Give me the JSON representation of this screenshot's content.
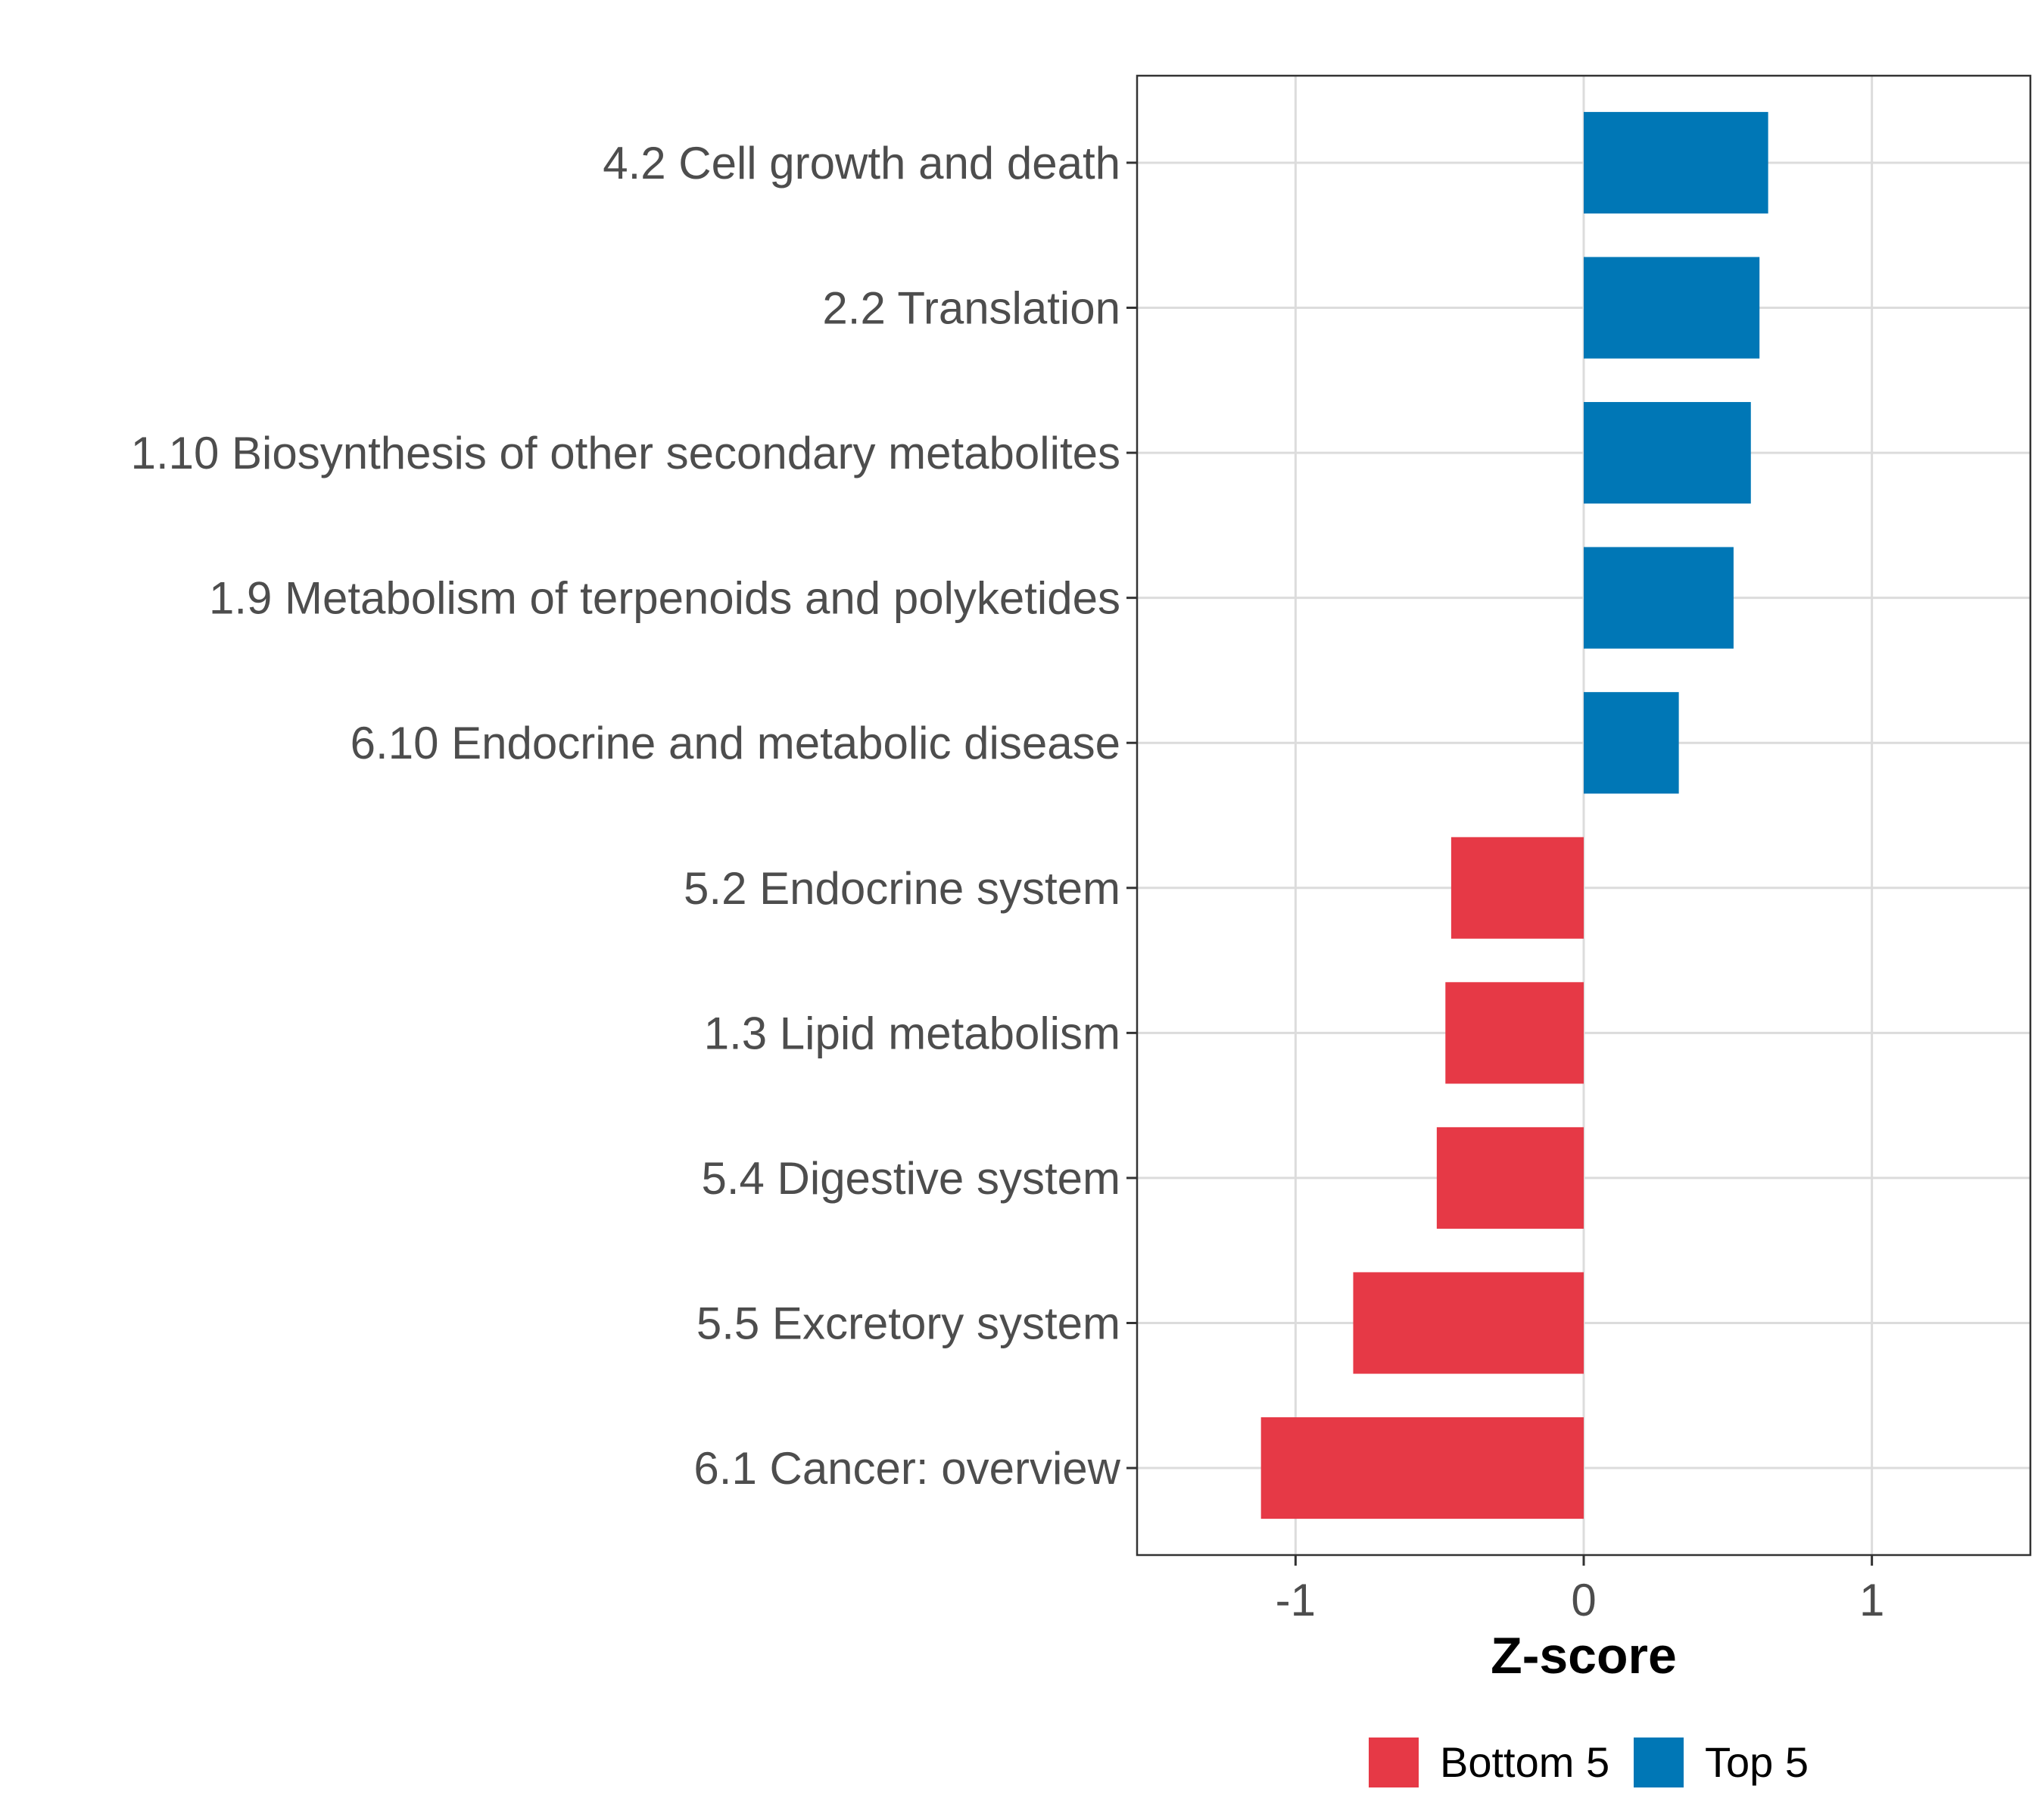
{
  "chart_data": {
    "type": "bar",
    "orientation": "horizontal",
    "title": "",
    "xlabel": "Z-score",
    "ylabel": "",
    "xlim": [
      -1.55,
      1.55
    ],
    "xticks": [
      -1,
      0,
      1
    ],
    "xtick_labels": [
      "-1",
      "0",
      "1"
    ],
    "grid": true,
    "legend_position": "bottom",
    "categories": [
      "4.2 Cell growth and death",
      "2.2 Translation",
      "1.10 Biosynthesis of other secondary metabolites",
      "1.9 Metabolism of terpenoids and polyketides",
      "6.10 Endocrine and metabolic disease",
      "5.2 Endocrine system",
      "1.3 Lipid metabolism",
      "5.4 Digestive system",
      "5.5 Excretory system",
      "6.1 Cancer: overview"
    ],
    "values": [
      0.64,
      0.61,
      0.58,
      0.52,
      0.33,
      -0.46,
      -0.48,
      -0.51,
      -0.8,
      -1.12
    ],
    "groups": [
      "Top 5",
      "Top 5",
      "Top 5",
      "Top 5",
      "Top 5",
      "Bottom 5",
      "Bottom 5",
      "Bottom 5",
      "Bottom 5",
      "Bottom 5"
    ],
    "legend": [
      {
        "name": "Bottom 5",
        "color": "#e63946"
      },
      {
        "name": "Top 5",
        "color": "#0077b6"
      }
    ]
  },
  "colors": {
    "top": "#0077b6",
    "bottom": "#e63946",
    "grid": "#dcdcdc",
    "panel_border": "#333333"
  }
}
